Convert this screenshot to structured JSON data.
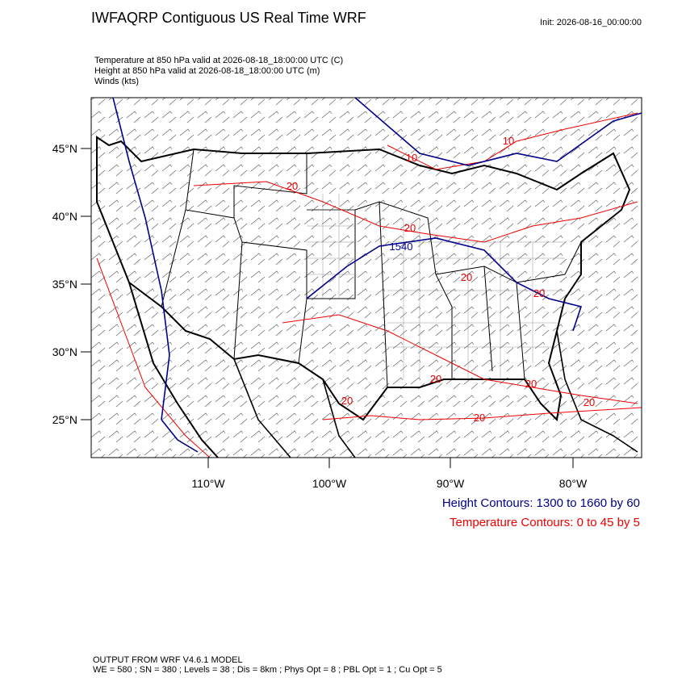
{
  "header": {
    "title": "IWFAQRP Contiguous US Real Time WRF",
    "init": "Init: 2026-08-16_00:00:00",
    "fields": [
      "Temperature at 850 hPa valid at 2026-08-18_18:00:00 UTC   (C)",
      "Height at 850 hPa valid at 2026-08-18_18:00:00 UTC   (m)",
      "Winds   (kts)"
    ]
  },
  "axes": {
    "lat_labels": [
      "45°N",
      "40°N",
      "35°N",
      "30°N",
      "25°N"
    ],
    "lon_labels": [
      "110°W",
      "100°W",
      "90°W",
      "80°W"
    ]
  },
  "contour_labels": [
    "10",
    "10",
    "20",
    "20",
    "1540",
    "20",
    "20",
    "20",
    "20",
    "20",
    "20",
    "20"
  ],
  "legend": {
    "height": "Height Contours: 1300 to 1660 by 60",
    "temperature": "Temperature Contours: 0 to 45 by 5"
  },
  "footer": [
    "OUTPUT FROM WRF V4.6.1 MODEL",
    "WE = 580 ; SN = 380 ; Levels = 38 ; Dis = 8km ; Phys Opt = 8 ; PBL Opt = 1 ; Cu Opt = 5"
  ]
}
